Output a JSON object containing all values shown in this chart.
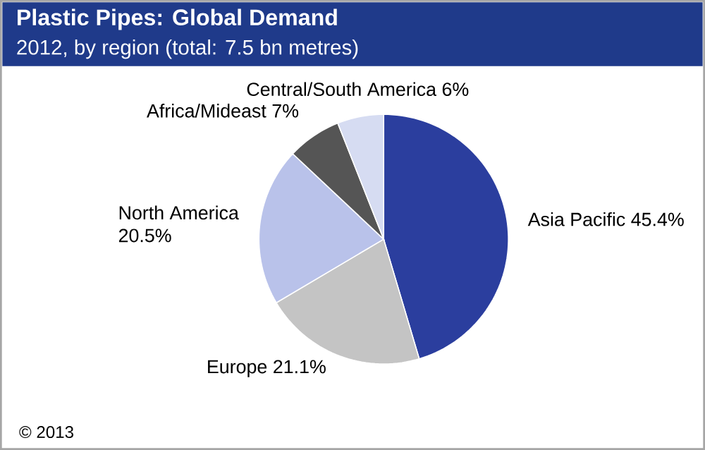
{
  "chart_data": {
    "type": "pie",
    "title": "Plastic Pipes: Global Demand",
    "subtitle": "2012, by region (total: 7.5 bn metres)",
    "categories": [
      "Asia Pacific",
      "Europe",
      "North America",
      "Africa/Mideast",
      "Central/South America"
    ],
    "values": [
      45.4,
      21.1,
      20.5,
      7,
      6
    ],
    "value_labels": [
      "45.4%",
      "21.1%",
      "20.5%",
      "7%",
      "6%"
    ],
    "colors": [
      "#2b3e9e",
      "#c4c4c4",
      "#b9c2ea",
      "#555555",
      "#d6dcf2"
    ],
    "annotations": [
      "© 2013"
    ]
  }
}
